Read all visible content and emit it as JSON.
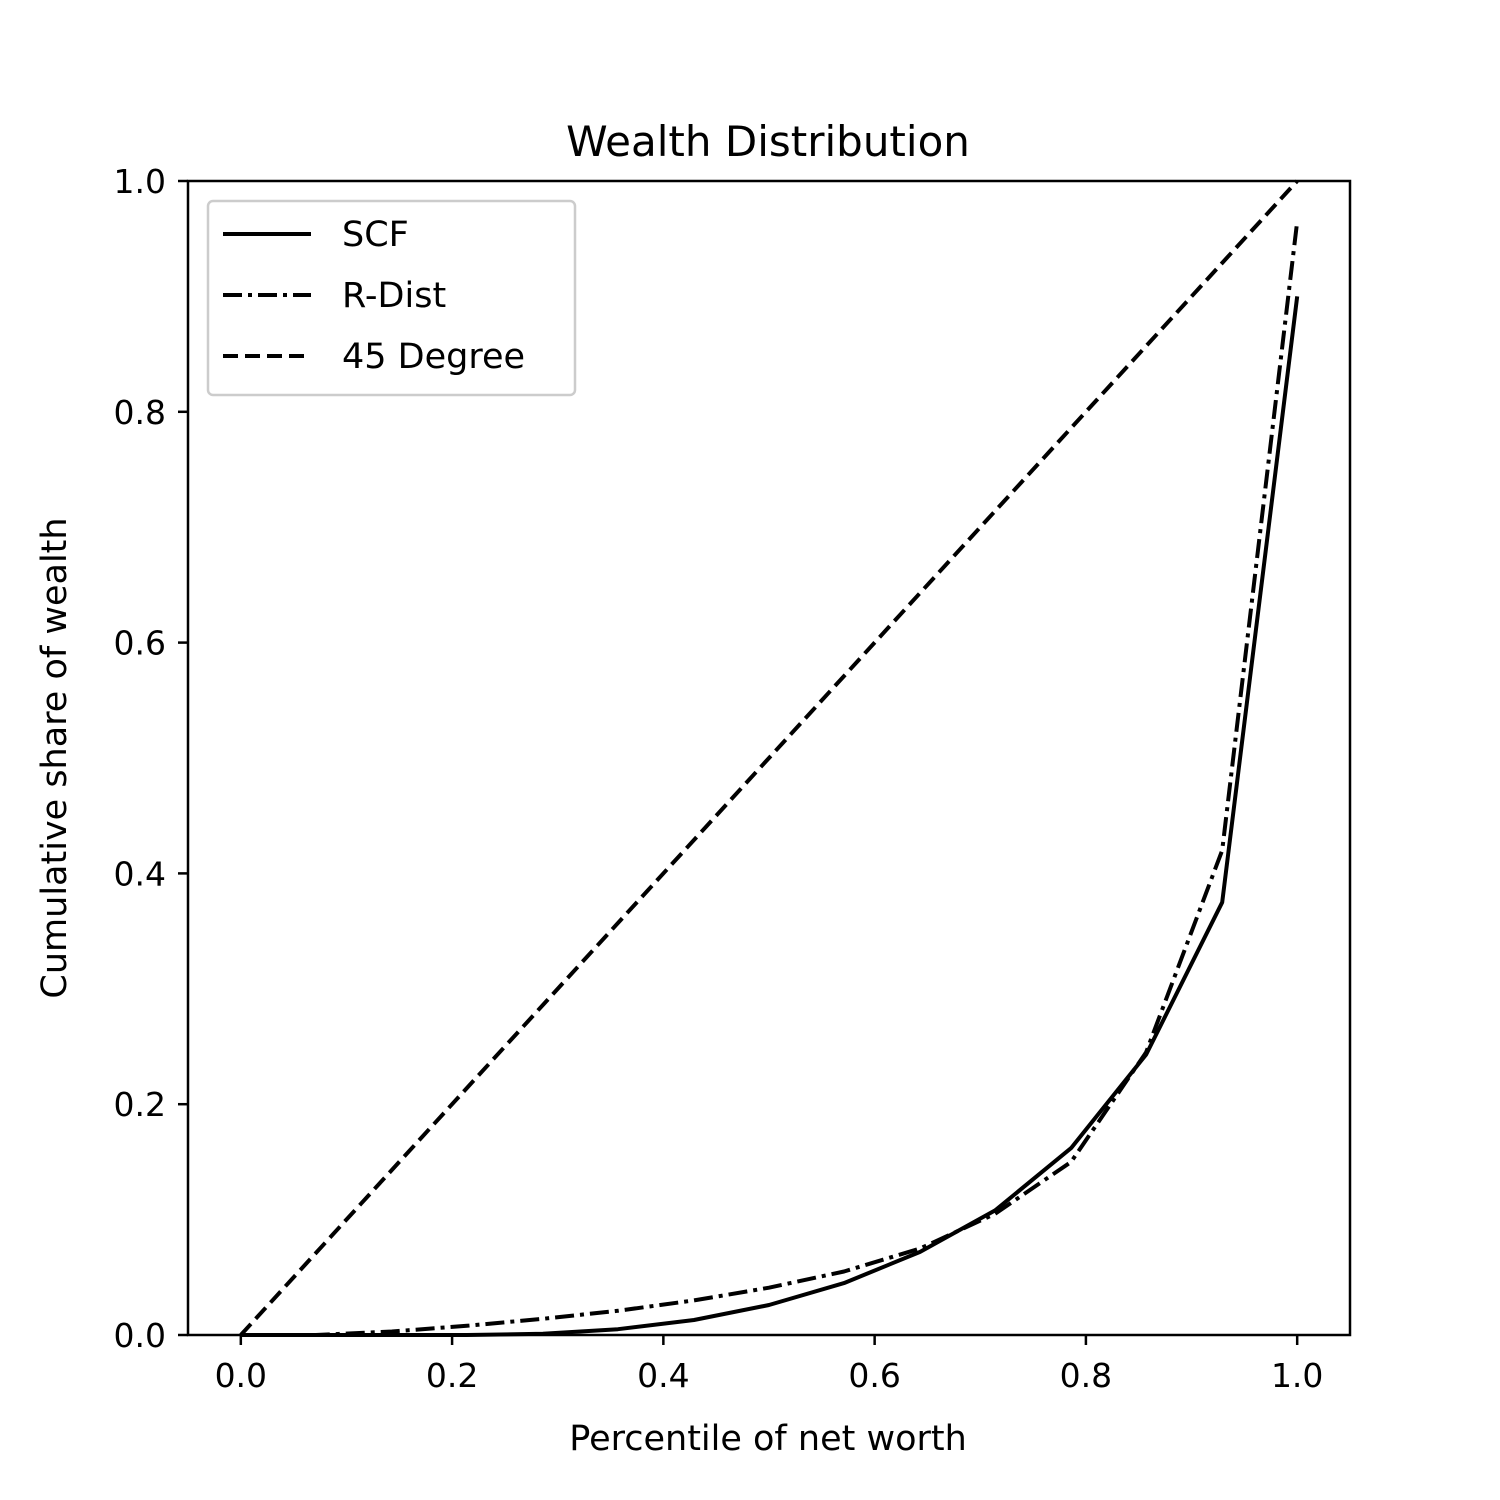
{
  "chart_data": {
    "type": "line",
    "title": "Wealth Distribution",
    "xlabel": "Percentile of net worth",
    "ylabel": "Cumulative share of wealth",
    "xlim": [
      -0.05,
      1.05
    ],
    "ylim": [
      0.0,
      1.0
    ],
    "x_ticks": [
      "0.0",
      "0.2",
      "0.4",
      "0.6",
      "0.8",
      "1.0"
    ],
    "y_ticks": [
      "0.0",
      "0.2",
      "0.4",
      "0.6",
      "0.8",
      "1.0"
    ],
    "grid": false,
    "legend_position": "top-left",
    "series": [
      {
        "name": "SCF",
        "style": "solid",
        "color": "#000000",
        "x": [
          0.0,
          0.071,
          0.143,
          0.214,
          0.286,
          0.357,
          0.429,
          0.5,
          0.571,
          0.643,
          0.714,
          0.786,
          0.857,
          0.929,
          1.0
        ],
        "y": [
          0.0,
          0.0,
          0.0,
          0.0,
          0.001,
          0.005,
          0.013,
          0.026,
          0.045,
          0.072,
          0.108,
          0.162,
          0.243,
          0.375,
          0.9
        ]
      },
      {
        "name": "R-Dist",
        "style": "dashdot",
        "color": "#000000",
        "x": [
          0.0,
          0.071,
          0.143,
          0.214,
          0.286,
          0.357,
          0.429,
          0.5,
          0.571,
          0.643,
          0.714,
          0.786,
          0.857,
          0.929,
          1.0
        ],
        "y": [
          0.0,
          0.0,
          0.003,
          0.008,
          0.014,
          0.021,
          0.03,
          0.041,
          0.055,
          0.075,
          0.105,
          0.15,
          0.245,
          0.42,
          0.965
        ]
      },
      {
        "name": "45 Degree",
        "style": "dashed",
        "color": "#000000",
        "x": [
          0.0,
          1.0
        ],
        "y": [
          0.0,
          1.0
        ]
      }
    ]
  }
}
